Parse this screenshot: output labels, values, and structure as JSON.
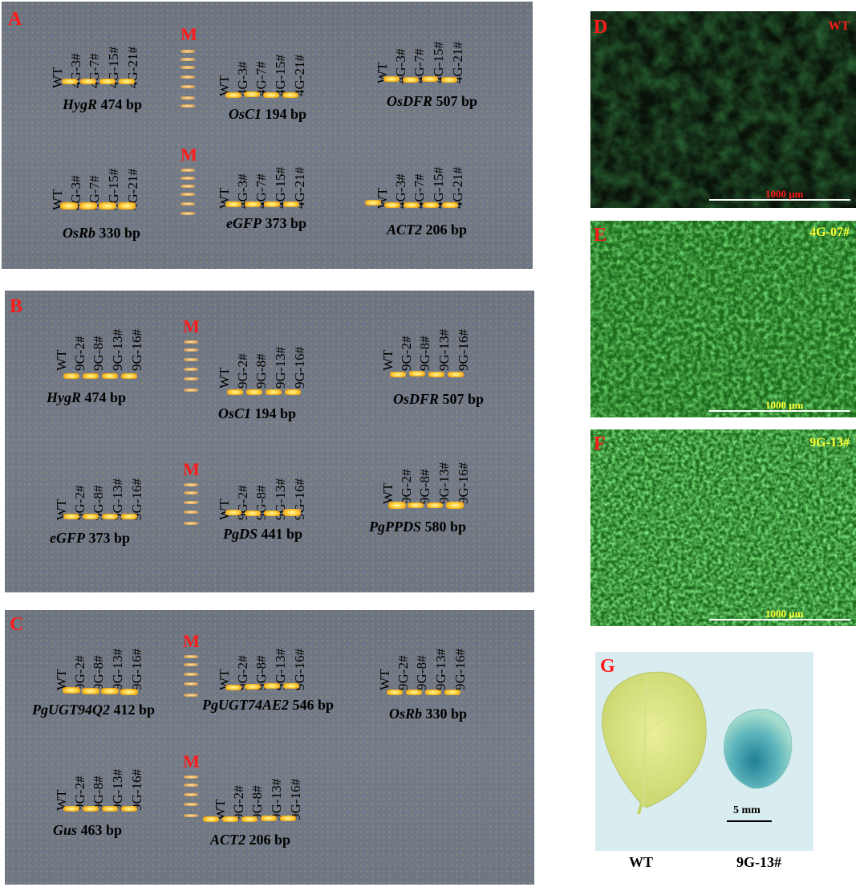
{
  "panels": {
    "a": "A",
    "b": "B",
    "c": "C",
    "d": "D",
    "e": "E",
    "f": "F",
    "g": "G",
    "m": "M"
  },
  "panel_a": {
    "lanes_4g": [
      "WT",
      "4G-3#",
      "4G-7#",
      "4G-15#",
      "4G-21#"
    ],
    "genes": {
      "hygr": {
        "name": "HygR",
        "size": "474 bp"
      },
      "osc1": {
        "name": "OsC1",
        "size": "194 bp"
      },
      "osdfr": {
        "name": "OsDFR",
        "size": "507 bp"
      },
      "osrb": {
        "name": "OsRb",
        "size": "330 bp"
      },
      "egfp": {
        "name": "eGFP",
        "size": "373 bp"
      },
      "act2": {
        "name": "ACT2",
        "size": "206 bp"
      }
    }
  },
  "panel_b": {
    "lanes_9g": [
      "WT",
      "9G-2#",
      "9G-8#",
      "9G-13#",
      "9G-16#"
    ],
    "genes": {
      "hygr": {
        "name": "HygR",
        "size": "474 bp"
      },
      "osc1": {
        "name": "OsC1",
        "size": "194 bp"
      },
      "osdfr": {
        "name": "OsDFR",
        "size": "507 bp"
      },
      "egfp": {
        "name": "eGFP",
        "size": "373 bp"
      },
      "pgds": {
        "name": "PgDS",
        "size": "441 bp"
      },
      "pgppds": {
        "name": "PgPPDS",
        "size": "580 bp"
      }
    }
  },
  "panel_c": {
    "lanes_9g": [
      "WT",
      "9G-2#",
      "9G-8#",
      "9G-13#",
      "9G-16#"
    ],
    "genes": {
      "pgugt94q2": {
        "name": "PgUGT94Q2",
        "size": "412 bp"
      },
      "pgugt74ae2": {
        "name": "PgUGT74AE2",
        "size": "546 bp"
      },
      "osrb": {
        "name": "OsRb",
        "size": "330 bp"
      },
      "gus": {
        "name": "Gus",
        "size": "463 bp"
      },
      "act2": {
        "name": "ACT2",
        "size": "206 bp"
      }
    }
  },
  "fluorescence": {
    "d_label": "WT",
    "e_label": "4G-07#",
    "f_label": "9G-13#",
    "scale": "1000 μm",
    "d_label_color": "#ff1a1a",
    "ef_label_color": "#ffff33"
  },
  "gus_photo": {
    "scale": "5 mm",
    "wt": "WT",
    "line": "9G-13#"
  },
  "colors": {
    "panel_letter": "#ff1a1a",
    "band": "#ffd23d",
    "gel": "#6f7884",
    "gfp": "#2fb52f"
  }
}
